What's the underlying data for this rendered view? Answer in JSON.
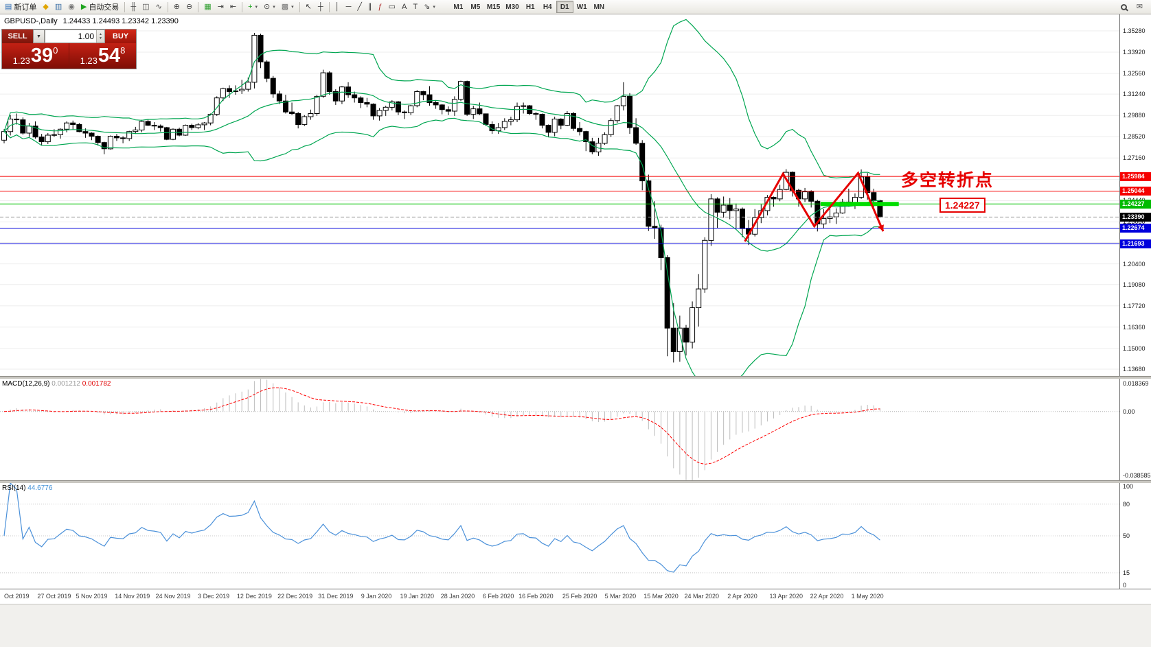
{
  "colors": {
    "bands": "#00a651",
    "macd_hist": "#bdbdbd",
    "macd_signal": "#ff0000",
    "rsi": "#4a90d9",
    "annotation_red": "#e60000",
    "highlight_green": "#00dd00",
    "level_red": "#f50000",
    "level_green": "#00c400",
    "level_blue": "#0000dc",
    "bid_line": "#9b9b9b",
    "tag_black": "#000000",
    "trade_sell_btn": "#97170c",
    "trade_buy_btn": "#c01d10"
  },
  "toolbar": {
    "items": [
      {
        "name": "new-order-button",
        "icon": "▤",
        "icon_color": "#2f6db5",
        "label": "新订单"
      },
      {
        "name": "chart-profile-icon",
        "icon": "◆",
        "icon_color": "#e0a500"
      },
      {
        "name": "market-watch-icon",
        "icon": "▥",
        "icon_color": "#3a6ea5"
      },
      {
        "name": "navigator-icon",
        "icon": "◉",
        "icon_color": "#777777"
      },
      {
        "name": "autotrading-button",
        "icon": "▶",
        "icon_color": "#1fa51f",
        "label": "自动交易"
      },
      {
        "sep": true
      },
      {
        "name": "bar-chart-icon",
        "icon": "╫",
        "icon_color": "#444444"
      },
      {
        "name": "candlestick-chart-icon",
        "icon": "◫",
        "icon_color": "#444444"
      },
      {
        "name": "line-chart-icon",
        "icon": "∿",
        "icon_color": "#444444"
      },
      {
        "sep": true
      },
      {
        "name": "zoom-in-icon",
        "icon": "⊕",
        "icon_color": "#444444"
      },
      {
        "name": "zoom-out-icon",
        "icon": "⊖",
        "icon_color": "#444444"
      },
      {
        "sep": true
      },
      {
        "name": "tile-windows-icon",
        "icon": "▦",
        "icon_color": "#2e9e2e"
      },
      {
        "name": "auto-scroll-icon",
        "icon": "⇥",
        "icon_color": "#444444"
      },
      {
        "name": "chart-shift-icon",
        "icon": "⇤",
        "icon_color": "#444444"
      },
      {
        "sep": true
      },
      {
        "name": "indicators-icon",
        "icon": "+",
        "icon_color": "#1fa51f",
        "dropdown": true
      },
      {
        "name": "periods-icon",
        "icon": "⊙",
        "icon_color": "#444444",
        "dropdown": true
      },
      {
        "name": "templates-icon",
        "icon": "▩",
        "icon_color": "#777777",
        "dropdown": true
      },
      {
        "sep": true
      },
      {
        "name": "cursor-icon",
        "icon": "↖",
        "icon_color": "#333333"
      },
      {
        "name": "crosshair-icon",
        "icon": "┼",
        "icon_color": "#333333"
      },
      {
        "sep": true
      },
      {
        "name": "vertical-line-icon",
        "icon": "│",
        "icon_color": "#333333"
      },
      {
        "name": "horizontal-line-icon",
        "icon": "─",
        "icon_color": "#333333"
      },
      {
        "name": "trendline-icon",
        "icon": "╱",
        "icon_color": "#333333"
      },
      {
        "name": "equidistant-channel-icon",
        "icon": "∥",
        "icon_color": "#333333"
      },
      {
        "name": "fibonacci-icon",
        "icon": "ƒ",
        "icon_color": "#b03030"
      },
      {
        "name": "shapes-icon",
        "icon": "▭",
        "icon_color": "#333333"
      },
      {
        "name": "text-icon",
        "icon": "A",
        "icon_color": "#333333"
      },
      {
        "name": "text-label-icon",
        "icon": "T",
        "icon_color": "#333333"
      },
      {
        "name": "arrows-icon",
        "icon": "⇘",
        "icon_color": "#333333",
        "dropdown": true
      }
    ],
    "timeframes": [
      "M1",
      "M5",
      "M15",
      "M30",
      "H1",
      "H4",
      "D1",
      "W1",
      "MN"
    ],
    "active_timeframe": "D1"
  },
  "chart": {
    "symbol_period": "GBPUSD-,Daily",
    "ohlc_line": "1.24433 1.24493 1.23342 1.23390"
  },
  "trade_panel": {
    "sell_label": "SELL",
    "buy_label": "BUY",
    "volume_value": "1.00",
    "sell_price_big": "1.23",
    "sell_price_main": "39",
    "sell_price_sup": "0",
    "buy_price_big": "1.23",
    "buy_price_main": "54",
    "buy_price_sup": "8"
  },
  "levels": [
    {
      "price": 1.25984,
      "label": "1.25984",
      "color": "#f50000",
      "tag_bg": "#f50000"
    },
    {
      "price": 1.25044,
      "label": "1.25044",
      "color": "#f50000",
      "tag_bg": "#f50000"
    },
    {
      "price": 1.24227,
      "label": "1.24227",
      "color": "#00c400",
      "tag_bg": "#00bb00"
    },
    {
      "price": 1.2339,
      "label": "1.23390",
      "color": "#9b9b9b",
      "tag_bg": "#000000",
      "dashed": true,
      "is_bid": true
    },
    {
      "price": 1.22674,
      "label": "1.22674",
      "color": "#0000dc",
      "tag_bg": "#0000dc"
    },
    {
      "price": 1.21693,
      "label": "1.21693",
      "color": "#0000dc",
      "tag_bg": "#0000dc"
    }
  ],
  "annotations": {
    "turning_point_text": "多空转折点",
    "price_callout": "1.24227",
    "zigzag_points": [
      [
        118.4,
        1.2183
      ],
      [
        124.5,
        1.2615
      ],
      [
        129.5,
        1.228
      ],
      [
        136.5,
        1.262
      ],
      [
        140.5,
        1.2248
      ]
    ],
    "highlight_segment": {
      "from_bar": 130.5,
      "to_bar": 143,
      "price": 1.24227
    }
  },
  "macd": {
    "label": "MACD(12,26,9)",
    "main_value": "0.001212",
    "signal_value": "0.001782",
    "axis_max": "0.018369",
    "axis_zero": "0.00",
    "axis_min": "-0.038585",
    "params": {
      "fast": 12,
      "slow": 26,
      "signal": 9
    }
  },
  "rsi": {
    "label": "RSI(14)",
    "value": "44.6776",
    "period": 14,
    "levels": [
      80,
      50,
      15
    ],
    "axis_labels": [
      "100",
      "80",
      "50",
      "15",
      "0"
    ]
  },
  "chart_data": {
    "type": "candlestick",
    "symbol": "GBPUSD",
    "timeframe": "Daily",
    "ylim": [
      1.1324,
      1.3633
    ],
    "price_ticks": [
      "1.35280",
      "1.33920",
      "1.32560",
      "1.31240",
      "1.29880",
      "1.28520",
      "1.27160",
      "1.25800",
      "1.24440",
      "1.23080",
      "1.21760",
      "1.20400",
      "1.19080",
      "1.17720",
      "1.16360",
      "1.15000",
      "1.13680"
    ],
    "date_ticks": [
      {
        "label": "Oct 2019",
        "bar": 2
      },
      {
        "label": "27 Oct 2019",
        "bar": 8
      },
      {
        "label": "5 Nov 2019",
        "bar": 14
      },
      {
        "label": "14 Nov 2019",
        "bar": 20.5
      },
      {
        "label": "24 Nov 2019",
        "bar": 27
      },
      {
        "label": "3 Dec 2019",
        "bar": 33.5
      },
      {
        "label": "12 Dec 2019",
        "bar": 40
      },
      {
        "label": "22 Dec 2019",
        "bar": 46.5
      },
      {
        "label": "31 Dec 2019",
        "bar": 53
      },
      {
        "label": "9 Jan 2020",
        "bar": 59.5
      },
      {
        "label": "19 Jan 2020",
        "bar": 66
      },
      {
        "label": "28 Jan 2020",
        "bar": 72.5
      },
      {
        "label": "6 Feb 2020",
        "bar": 79
      },
      {
        "label": "16 Feb 2020",
        "bar": 85
      },
      {
        "label": "25 Feb 2020",
        "bar": 92
      },
      {
        "label": "5 Mar 2020",
        "bar": 98.5
      },
      {
        "label": "15 Mar 2020",
        "bar": 105
      },
      {
        "label": "24 Mar 2020",
        "bar": 111.5
      },
      {
        "label": "2 Apr 2020",
        "bar": 118
      },
      {
        "label": "13 Apr 2020",
        "bar": 125
      },
      {
        "label": "22 Apr 2020",
        "bar": 131.5
      },
      {
        "label": "1 May 2020",
        "bar": 138
      }
    ],
    "indicators": {
      "bollinger": {
        "period": 20,
        "deviation": 2
      }
    },
    "candles": [
      [
        1.283,
        1.29,
        1.281,
        1.2885
      ],
      [
        1.2885,
        1.299,
        1.286,
        1.2965
      ],
      [
        1.2965,
        1.3,
        1.293,
        1.296
      ],
      [
        1.296,
        1.2975,
        1.2865,
        1.2875
      ],
      [
        1.2875,
        1.294,
        1.285,
        1.292
      ],
      [
        1.292,
        1.295,
        1.284,
        1.285
      ],
      [
        1.285,
        1.287,
        1.28,
        1.282
      ],
      [
        1.282,
        1.2875,
        1.2805,
        1.2862
      ],
      [
        1.2862,
        1.29,
        1.285,
        1.2865
      ],
      [
        1.2865,
        1.2905,
        1.284,
        1.29
      ],
      [
        1.29,
        1.295,
        1.288,
        1.294
      ],
      [
        1.294,
        1.2955,
        1.29,
        1.293
      ],
      [
        1.293,
        1.294,
        1.288,
        1.2885
      ],
      [
        1.2885,
        1.2905,
        1.2845,
        1.2875
      ],
      [
        1.2875,
        1.288,
        1.283,
        1.2855
      ],
      [
        1.2855,
        1.286,
        1.2795,
        1.2815
      ],
      [
        1.2815,
        1.282,
        1.274,
        1.2775
      ],
      [
        1.2775,
        1.286,
        1.277,
        1.2855
      ],
      [
        1.2855,
        1.287,
        1.2825,
        1.2845
      ],
      [
        1.2845,
        1.2855,
        1.281,
        1.284
      ],
      [
        1.284,
        1.289,
        1.2825,
        1.2885
      ],
      [
        1.2885,
        1.2915,
        1.287,
        1.2895
      ],
      [
        1.2895,
        1.296,
        1.288,
        1.295
      ],
      [
        1.295,
        1.2965,
        1.292,
        1.2925
      ],
      [
        1.2925,
        1.2945,
        1.2895,
        1.292
      ],
      [
        1.292,
        1.293,
        1.2885,
        1.291
      ],
      [
        1.291,
        1.2915,
        1.283,
        1.2835
      ],
      [
        1.2835,
        1.2905,
        1.283,
        1.29
      ],
      [
        1.29,
        1.291,
        1.2855,
        1.2862
      ],
      [
        1.2862,
        1.293,
        1.2858,
        1.2925
      ],
      [
        1.2925,
        1.2935,
        1.2895,
        1.291
      ],
      [
        1.291,
        1.294,
        1.29,
        1.2928
      ],
      [
        1.2928,
        1.2945,
        1.2895,
        1.294
      ],
      [
        1.294,
        1.3,
        1.2925,
        1.2995
      ],
      [
        1.2995,
        1.311,
        1.2985,
        1.31
      ],
      [
        1.31,
        1.3165,
        1.308,
        1.316
      ],
      [
        1.316,
        1.318,
        1.31,
        1.314
      ],
      [
        1.314,
        1.318,
        1.312,
        1.3145
      ],
      [
        1.3145,
        1.3215,
        1.3125,
        1.3155
      ],
      [
        1.3155,
        1.323,
        1.314,
        1.32
      ],
      [
        1.32,
        1.3515,
        1.316,
        1.35
      ],
      [
        1.35,
        1.351,
        1.329,
        1.333
      ],
      [
        1.333,
        1.334,
        1.32,
        1.3225
      ],
      [
        1.3225,
        1.324,
        1.31,
        1.3125
      ],
      [
        1.3125,
        1.3145,
        1.306,
        1.308
      ],
      [
        1.308,
        1.312,
        1.3,
        1.301
      ],
      [
        1.301,
        1.307,
        1.299,
        1.3
      ],
      [
        1.3,
        1.301,
        1.2905,
        1.293
      ],
      [
        1.293,
        1.299,
        1.292,
        1.298
      ],
      [
        1.298,
        1.3025,
        1.296,
        1.3
      ],
      [
        1.3,
        1.312,
        1.2985,
        1.311
      ],
      [
        1.311,
        1.328,
        1.31,
        1.326
      ],
      [
        1.326,
        1.327,
        1.312,
        1.314
      ],
      [
        1.314,
        1.3155,
        1.3055,
        1.308
      ],
      [
        1.308,
        1.3175,
        1.306,
        1.317
      ],
      [
        1.317,
        1.32,
        1.31,
        1.312
      ],
      [
        1.312,
        1.314,
        1.307,
        1.31
      ],
      [
        1.31,
        1.311,
        1.3035,
        1.307
      ],
      [
        1.307,
        1.31,
        1.304,
        1.306
      ],
      [
        1.306,
        1.3065,
        1.296,
        1.2985
      ],
      [
        1.2985,
        1.3035,
        1.2955,
        1.302
      ],
      [
        1.302,
        1.305,
        1.2985,
        1.304
      ],
      [
        1.304,
        1.3085,
        1.302,
        1.3075
      ],
      [
        1.3075,
        1.308,
        1.299,
        1.301
      ],
      [
        1.301,
        1.302,
        1.2965,
        1.3005
      ],
      [
        1.3005,
        1.3055,
        1.299,
        1.305
      ],
      [
        1.305,
        1.315,
        1.304,
        1.314
      ],
      [
        1.314,
        1.3145,
        1.3085,
        1.312
      ],
      [
        1.312,
        1.3175,
        1.305,
        1.307
      ],
      [
        1.307,
        1.308,
        1.303,
        1.3055
      ],
      [
        1.3055,
        1.306,
        1.2995,
        1.3025
      ],
      [
        1.3025,
        1.3045,
        1.299,
        1.3015
      ],
      [
        1.3015,
        1.311,
        1.2985,
        1.309
      ],
      [
        1.309,
        1.321,
        1.308,
        1.3205
      ],
      [
        1.3205,
        1.321,
        1.2985,
        1.2995
      ],
      [
        1.2995,
        1.305,
        1.2965,
        1.303
      ],
      [
        1.303,
        1.307,
        1.299,
        1.2998
      ],
      [
        1.2998,
        1.3,
        1.292,
        1.293
      ],
      [
        1.293,
        1.295,
        1.287,
        1.289
      ],
      [
        1.289,
        1.294,
        1.287,
        1.291
      ],
      [
        1.291,
        1.297,
        1.2895,
        1.295
      ],
      [
        1.295,
        1.298,
        1.2925,
        1.296
      ],
      [
        1.296,
        1.307,
        1.2945,
        1.3045
      ],
      [
        1.3045,
        1.307,
        1.3,
        1.305
      ],
      [
        1.305,
        1.3055,
        1.299,
        1.3
      ],
      [
        1.3,
        1.301,
        1.296,
        1.2995
      ],
      [
        1.2995,
        1.3,
        1.2905,
        1.2925
      ],
      [
        1.2925,
        1.293,
        1.285,
        1.288
      ],
      [
        1.288,
        1.298,
        1.2855,
        1.2965
      ],
      [
        1.2965,
        1.297,
        1.29,
        1.2925
      ],
      [
        1.2925,
        1.3015,
        1.292,
        1.3
      ],
      [
        1.3,
        1.301,
        1.289,
        1.2905
      ],
      [
        1.2905,
        1.2945,
        1.286,
        1.2885
      ],
      [
        1.2885,
        1.289,
        1.276,
        1.282
      ],
      [
        1.282,
        1.2845,
        1.274,
        1.2755
      ],
      [
        1.2755,
        1.2845,
        1.273,
        1.281
      ],
      [
        1.281,
        1.288,
        1.28,
        1.2865
      ],
      [
        1.2865,
        1.297,
        1.285,
        1.2955
      ],
      [
        1.2955,
        1.3055,
        1.294,
        1.305
      ],
      [
        1.305,
        1.32,
        1.302,
        1.311
      ],
      [
        1.311,
        1.313,
        1.287,
        1.291
      ],
      [
        1.291,
        1.297,
        1.28,
        1.281
      ],
      [
        1.281,
        1.283,
        1.251,
        1.257
      ],
      [
        1.257,
        1.261,
        1.225,
        1.228
      ],
      [
        1.228,
        1.244,
        1.22,
        1.227
      ],
      [
        1.227,
        1.229,
        1.2,
        1.208
      ],
      [
        1.208,
        1.2095,
        1.145,
        1.163
      ],
      [
        1.163,
        1.179,
        1.141,
        1.148
      ],
      [
        1.148,
        1.171,
        1.1415,
        1.163
      ],
      [
        1.163,
        1.165,
        1.1455,
        1.154
      ],
      [
        1.154,
        1.18,
        1.15,
        1.176
      ],
      [
        1.176,
        1.1975,
        1.164,
        1.188
      ],
      [
        1.188,
        1.221,
        1.1855,
        1.219
      ],
      [
        1.219,
        1.2485,
        1.2155,
        1.2455
      ],
      [
        1.2455,
        1.2465,
        1.227,
        1.237
      ],
      [
        1.237,
        1.247,
        1.2335,
        1.2415
      ],
      [
        1.2415,
        1.246,
        1.2325,
        1.238
      ],
      [
        1.238,
        1.2425,
        1.2265,
        1.239
      ],
      [
        1.239,
        1.24,
        1.221,
        1.2265
      ],
      [
        1.2265,
        1.232,
        1.216,
        1.223
      ],
      [
        1.223,
        1.239,
        1.2215,
        1.2335
      ],
      [
        1.2335,
        1.242,
        1.23,
        1.238
      ],
      [
        1.238,
        1.248,
        1.235,
        1.2465
      ],
      [
        1.2465,
        1.247,
        1.2405,
        1.2455
      ],
      [
        1.2455,
        1.2545,
        1.244,
        1.2515
      ],
      [
        1.2515,
        1.2645,
        1.251,
        1.2625
      ],
      [
        1.2625,
        1.263,
        1.247,
        1.251
      ],
      [
        1.251,
        1.252,
        1.2405,
        1.2455
      ],
      [
        1.2455,
        1.2525,
        1.2435,
        1.25
      ],
      [
        1.25,
        1.251,
        1.24,
        1.244
      ],
      [
        1.244,
        1.245,
        1.2247,
        1.2295
      ],
      [
        1.2295,
        1.239,
        1.2265,
        1.233
      ],
      [
        1.233,
        1.2415,
        1.23,
        1.234
      ],
      [
        1.234,
        1.2395,
        1.2295,
        1.2365
      ],
      [
        1.2365,
        1.2455,
        1.236,
        1.2435
      ],
      [
        1.2435,
        1.252,
        1.2405,
        1.243
      ],
      [
        1.243,
        1.249,
        1.239,
        1.2465
      ],
      [
        1.2465,
        1.2643,
        1.2455,
        1.2595
      ],
      [
        1.2595,
        1.262,
        1.245,
        1.2495
      ],
      [
        1.2495,
        1.252,
        1.2405,
        1.2443
      ],
      [
        1.24433,
        1.24493,
        1.23342,
        1.2339
      ]
    ]
  }
}
